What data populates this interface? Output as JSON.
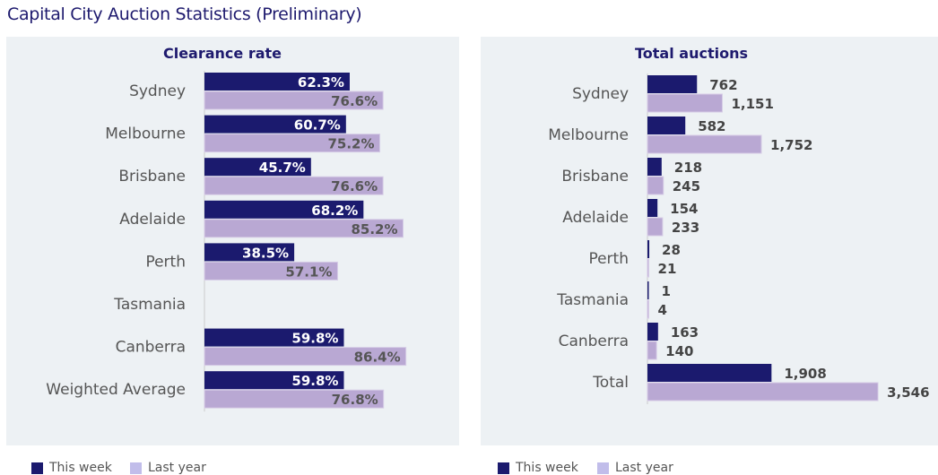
{
  "title": "Capital City Auction Statistics (Preliminary)",
  "colors": {
    "this_week": "#1b1a6e",
    "last_year": "#b9a8d3",
    "legend_last_year": "#c1bdea"
  },
  "chart_data": [
    {
      "type": "bar",
      "orientation": "horizontal",
      "title": "Clearance rate",
      "categories": [
        "Sydney",
        "Melbourne",
        "Brisbane",
        "Adelaide",
        "Perth",
        "Tasmania",
        "Canberra",
        "Weighted Average"
      ],
      "series": [
        {
          "name": "This week",
          "values": [
            62.3,
            60.7,
            45.7,
            68.2,
            38.5,
            null,
            59.8,
            59.8
          ],
          "labels": [
            "62.3%",
            "60.7%",
            "45.7%",
            "68.2%",
            "38.5%",
            "",
            "59.8%",
            "59.8%"
          ]
        },
        {
          "name": "Last year",
          "values": [
            76.6,
            75.2,
            76.6,
            85.2,
            57.1,
            null,
            86.4,
            76.8
          ],
          "labels": [
            "76.6%",
            "75.2%",
            "76.6%",
            "85.2%",
            "57.1%",
            "",
            "86.4%",
            "76.8%"
          ]
        }
      ],
      "legend": "bottom-left",
      "grid": false
    },
    {
      "type": "bar",
      "orientation": "horizontal",
      "title": "Total auctions",
      "categories": [
        "Sydney",
        "Melbourne",
        "Brisbane",
        "Adelaide",
        "Perth",
        "Tasmania",
        "Canberra",
        "Total"
      ],
      "series": [
        {
          "name": "This week",
          "values": [
            762,
            582,
            218,
            154,
            28,
            1,
            163,
            1908
          ],
          "labels": [
            "762",
            "582",
            "218",
            "154",
            "28",
            "1",
            "163",
            "1,908"
          ]
        },
        {
          "name": "Last year",
          "values": [
            1151,
            1752,
            245,
            233,
            21,
            4,
            140,
            3546
          ],
          "labels": [
            "1,151",
            "1,752",
            "245",
            "233",
            "21",
            "4",
            "140",
            "3,546"
          ]
        }
      ],
      "legend": "bottom-left",
      "grid": false
    }
  ]
}
